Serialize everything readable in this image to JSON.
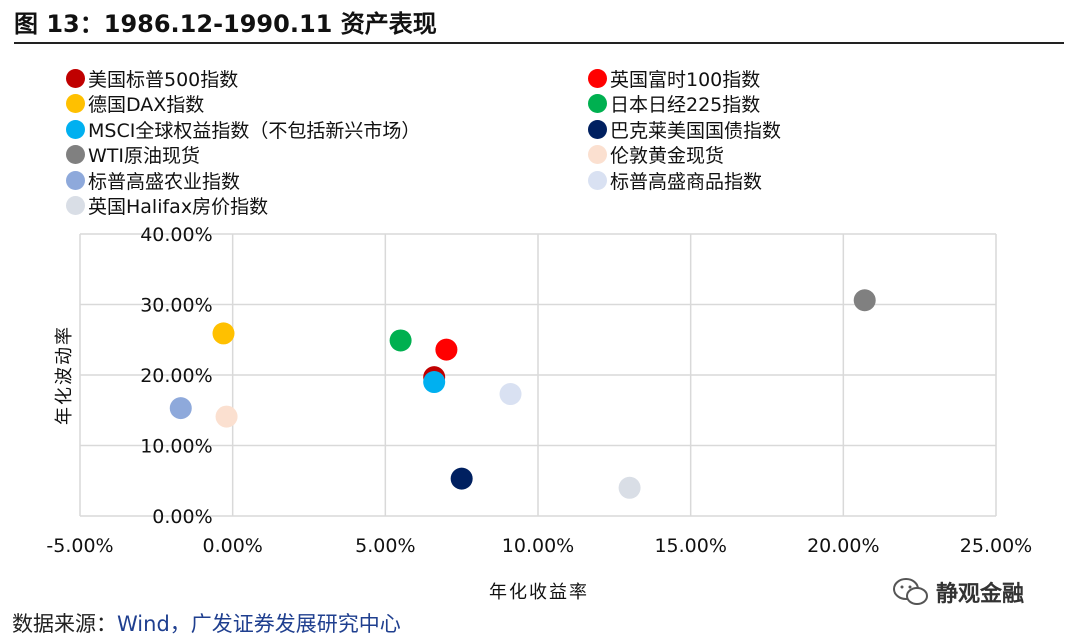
{
  "figure": {
    "title": "图 13：1986.12-1990.11 资产表现",
    "source_label": "数据来源：",
    "source_text": "Wind，广发证券发展研究中心",
    "watermark": "静观金融"
  },
  "chart_data": {
    "type": "scatter",
    "xlabel": "年化收益率",
    "ylabel": "年化波动率",
    "xlim": [
      -0.05,
      0.25
    ],
    "ylim": [
      0,
      0.4
    ],
    "x_ticks": [
      -0.05,
      0,
      0.05,
      0.1,
      0.15,
      0.2,
      0.25
    ],
    "x_tick_labels": [
      "-5.00%",
      "0.00%",
      "5.00%",
      "10.00%",
      "15.00%",
      "20.00%",
      "25.00%"
    ],
    "y_ticks": [
      0,
      0.1,
      0.2,
      0.3,
      0.4
    ],
    "y_tick_labels": [
      "0.00%",
      "10.00%",
      "20.00%",
      "30.00%",
      "40.00%"
    ],
    "grid": true,
    "legend_position": "top",
    "series": [
      {
        "name": "美国标普500指数",
        "color": "#c00000",
        "x": 0.066,
        "y": 0.197
      },
      {
        "name": "英国富时100指数",
        "color": "#ff0000",
        "x": 0.07,
        "y": 0.236
      },
      {
        "name": "德国DAX指数",
        "color": "#ffc000",
        "x": -0.003,
        "y": 0.259
      },
      {
        "name": "日本日经225指数",
        "color": "#00b050",
        "x": 0.055,
        "y": 0.249
      },
      {
        "name": "MSCI全球权益指数（不包括新兴市场）",
        "color": "#00b0f0",
        "x": 0.066,
        "y": 0.19
      },
      {
        "name": "巴克莱美国国债指数",
        "color": "#002060",
        "x": 0.075,
        "y": 0.053
      },
      {
        "name": "WTI原油现货",
        "color": "#808080",
        "x": 0.207,
        "y": 0.306
      },
      {
        "name": "伦敦黄金现货",
        "color": "#fbe0d0",
        "x": -0.002,
        "y": 0.141
      },
      {
        "name": "标普高盛农业指数",
        "color": "#8ea9db",
        "x": -0.017,
        "y": 0.153
      },
      {
        "name": "标普高盛商品指数",
        "color": "#d9e1f2",
        "x": 0.091,
        "y": 0.173
      },
      {
        "name": "英国Halifax房价指数",
        "color": "#d9dee6",
        "x": 0.13,
        "y": 0.04
      }
    ]
  }
}
